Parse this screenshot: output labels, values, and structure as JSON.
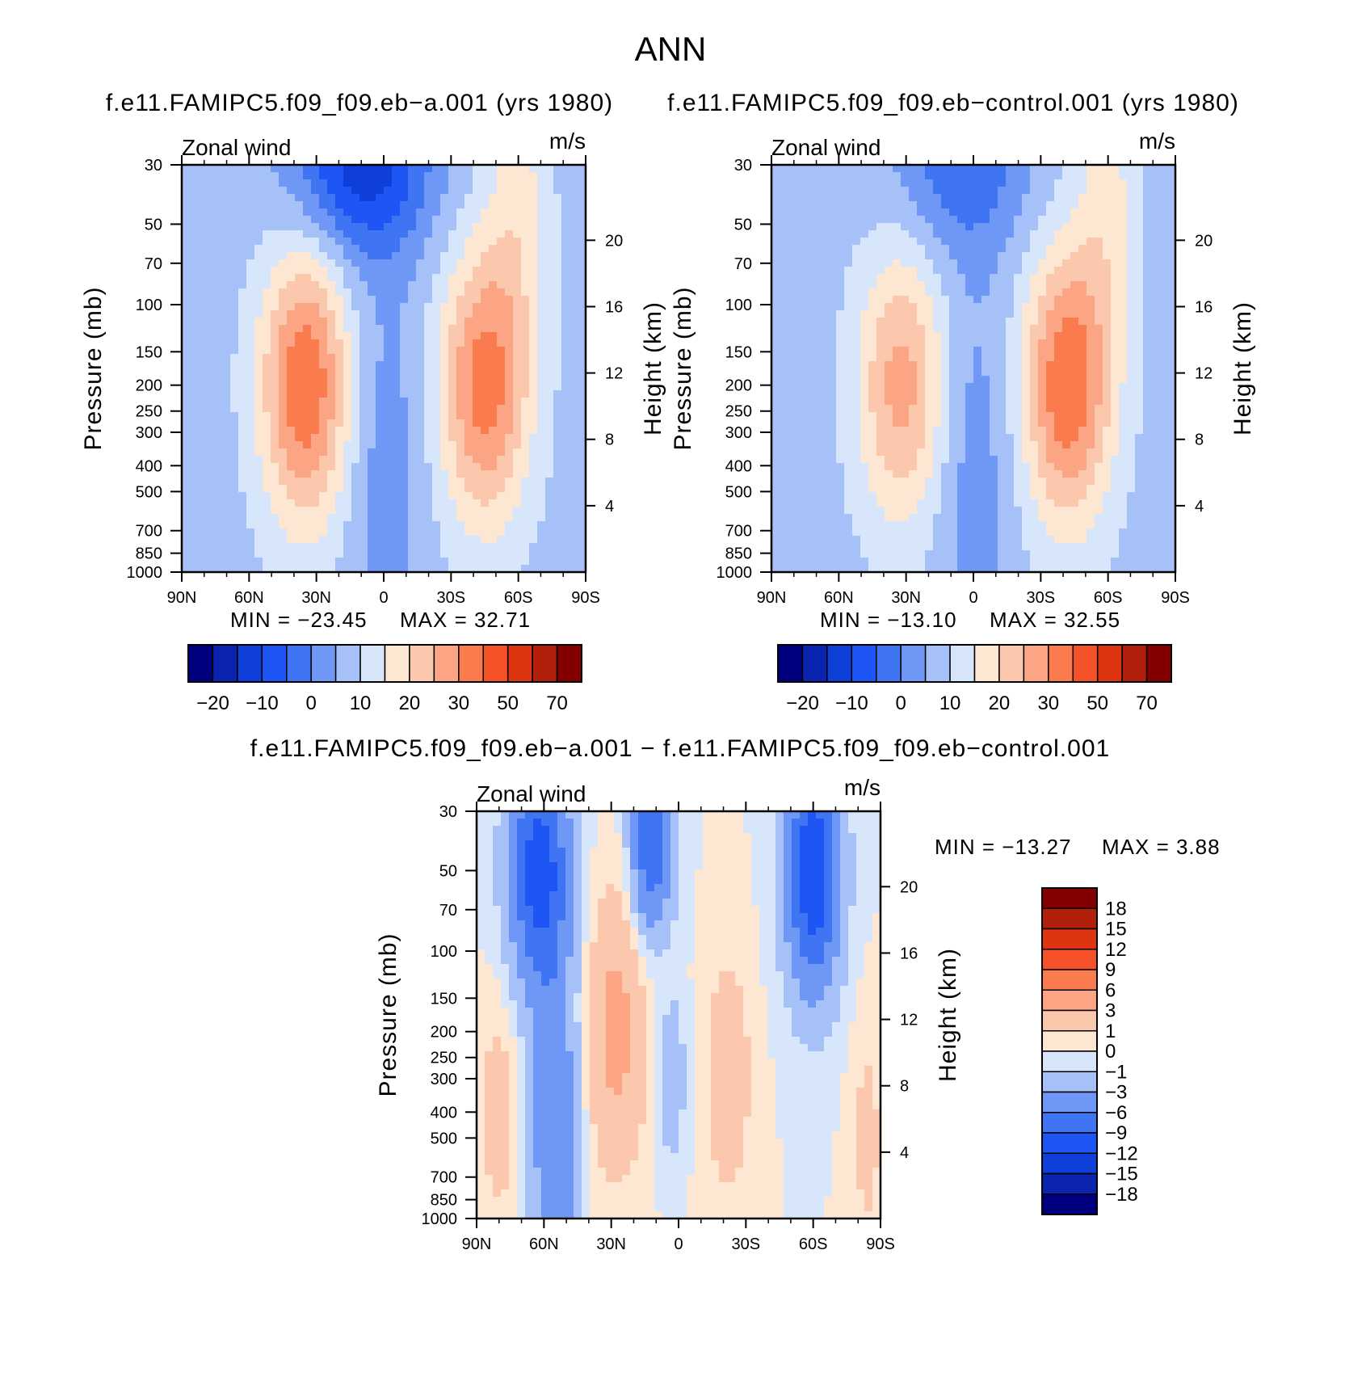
{
  "title": "ANN",
  "colors": {
    "anom_scale": [
      "#00007f",
      "#0a24b0",
      "#0f3fd9",
      "#1e56f5",
      "#3f74f3",
      "#6f97f5",
      "#a6c0f8",
      "#d7e6fb",
      "#fde6d2",
      "#fcc8ad",
      "#fba585",
      "#fa7b4e",
      "#f5522a",
      "#dd3510",
      "#b21f0b",
      "#830000"
    ],
    "diff_scale": [
      "#00007f",
      "#0a24b0",
      "#0f3fd9",
      "#1e56f5",
      "#3f74f3",
      "#6f97f5",
      "#a6c0f8",
      "#d7e6fb",
      "#fde6d2",
      "#fcc8ad",
      "#fba585",
      "#fa7b4e",
      "#f5522a",
      "#dd3510",
      "#b21f0b",
      "#830000"
    ]
  },
  "chart_data": [
    {
      "id": "panel_a",
      "type": "heatmap",
      "title": "f.e11.FAMIPC5.f09_f09.eb−a.001 (yrs 1980)",
      "subtitle_left": "Zonal wind",
      "subtitle_right": "m/s",
      "xlabel": "",
      "ylabel": "Pressure (mb)",
      "ylabel_right": "Height (km)",
      "x_ticks": [
        "90N",
        "60N",
        "30N",
        "0",
        "30S",
        "60S",
        "90S"
      ],
      "xlim": [
        90,
        -90
      ],
      "y_ticks": [
        "30",
        "50",
        "70",
        "100",
        "150",
        "200",
        "250",
        "300",
        "400",
        "500",
        "700",
        "850",
        "1000"
      ],
      "ylim": [
        1000,
        30
      ],
      "height_ticks": [
        "20",
        "16",
        "12",
        "8",
        "4"
      ],
      "min_label": "MIN = −23.45",
      "max_label": "MAX = 32.71",
      "min": -23.45,
      "max": 32.71,
      "colorbar_labels": [
        "−20",
        "−10",
        "0",
        "10",
        "20",
        "30",
        "50",
        "70"
      ],
      "jets": [
        {
          "lat": 35,
          "p": 200,
          "peak": 32.71
        },
        {
          "lat": -45,
          "p": 200,
          "peak": 30.5
        }
      ],
      "easterly_min": {
        "lat": 10,
        "p": 30,
        "value": -23.45
      }
    },
    {
      "id": "panel_control",
      "type": "heatmap",
      "title": "f.e11.FAMIPC5.f09_f09.eb−control.001 (yrs 1980)",
      "subtitle_left": "Zonal wind",
      "subtitle_right": "m/s",
      "xlabel": "",
      "ylabel": "Pressure (mb)",
      "ylabel_right": "Height (km)",
      "x_ticks": [
        "90N",
        "60N",
        "30N",
        "0",
        "30S",
        "60S",
        "90S"
      ],
      "xlim": [
        90,
        -90
      ],
      "y_ticks": [
        "30",
        "50",
        "70",
        "100",
        "150",
        "200",
        "250",
        "300",
        "400",
        "500",
        "700",
        "850",
        "1000"
      ],
      "ylim": [
        1000,
        30
      ],
      "height_ticks": [
        "20",
        "16",
        "12",
        "8",
        "4"
      ],
      "min_label": "MIN = −13.10",
      "max_label": "MAX = 32.55",
      "min": -13.1,
      "max": 32.55,
      "colorbar_labels": [
        "−20",
        "−10",
        "0",
        "10",
        "20",
        "30",
        "50",
        "70"
      ],
      "jets": [
        {
          "lat": 32,
          "p": 200,
          "peak": 25
        },
        {
          "lat": -42,
          "p": 200,
          "peak": 32.55
        }
      ],
      "easterly_min": {
        "lat": 5,
        "p": 30,
        "value": -13.1
      }
    },
    {
      "id": "panel_diff",
      "type": "heatmap",
      "title": "f.e11.FAMIPC5.f09_f09.eb−a.001 − f.e11.FAMIPC5.f09_f09.eb−control.001",
      "subtitle_left": "Zonal wind",
      "subtitle_right": "m/s",
      "xlabel": "",
      "ylabel": "Pressure (mb)",
      "ylabel_right": "Height (km)",
      "x_ticks": [
        "90N",
        "60N",
        "30N",
        "0",
        "30S",
        "60S",
        "90S"
      ],
      "xlim": [
        90,
        -90
      ],
      "y_ticks": [
        "30",
        "50",
        "70",
        "100",
        "150",
        "200",
        "250",
        "300",
        "400",
        "500",
        "700",
        "850",
        "1000"
      ],
      "ylim": [
        1000,
        30
      ],
      "height_ticks": [
        "20",
        "16",
        "12",
        "8",
        "4"
      ],
      "min_label": "MIN = −13.27",
      "max_label": "MAX = 3.88",
      "min": -13.27,
      "max": 3.88,
      "colorbar_labels": [
        "18",
        "15",
        "12",
        "9",
        "6",
        "3",
        "1",
        "0",
        "−1",
        "−3",
        "−6",
        "−9",
        "−12",
        "−15",
        "−18"
      ]
    }
  ]
}
